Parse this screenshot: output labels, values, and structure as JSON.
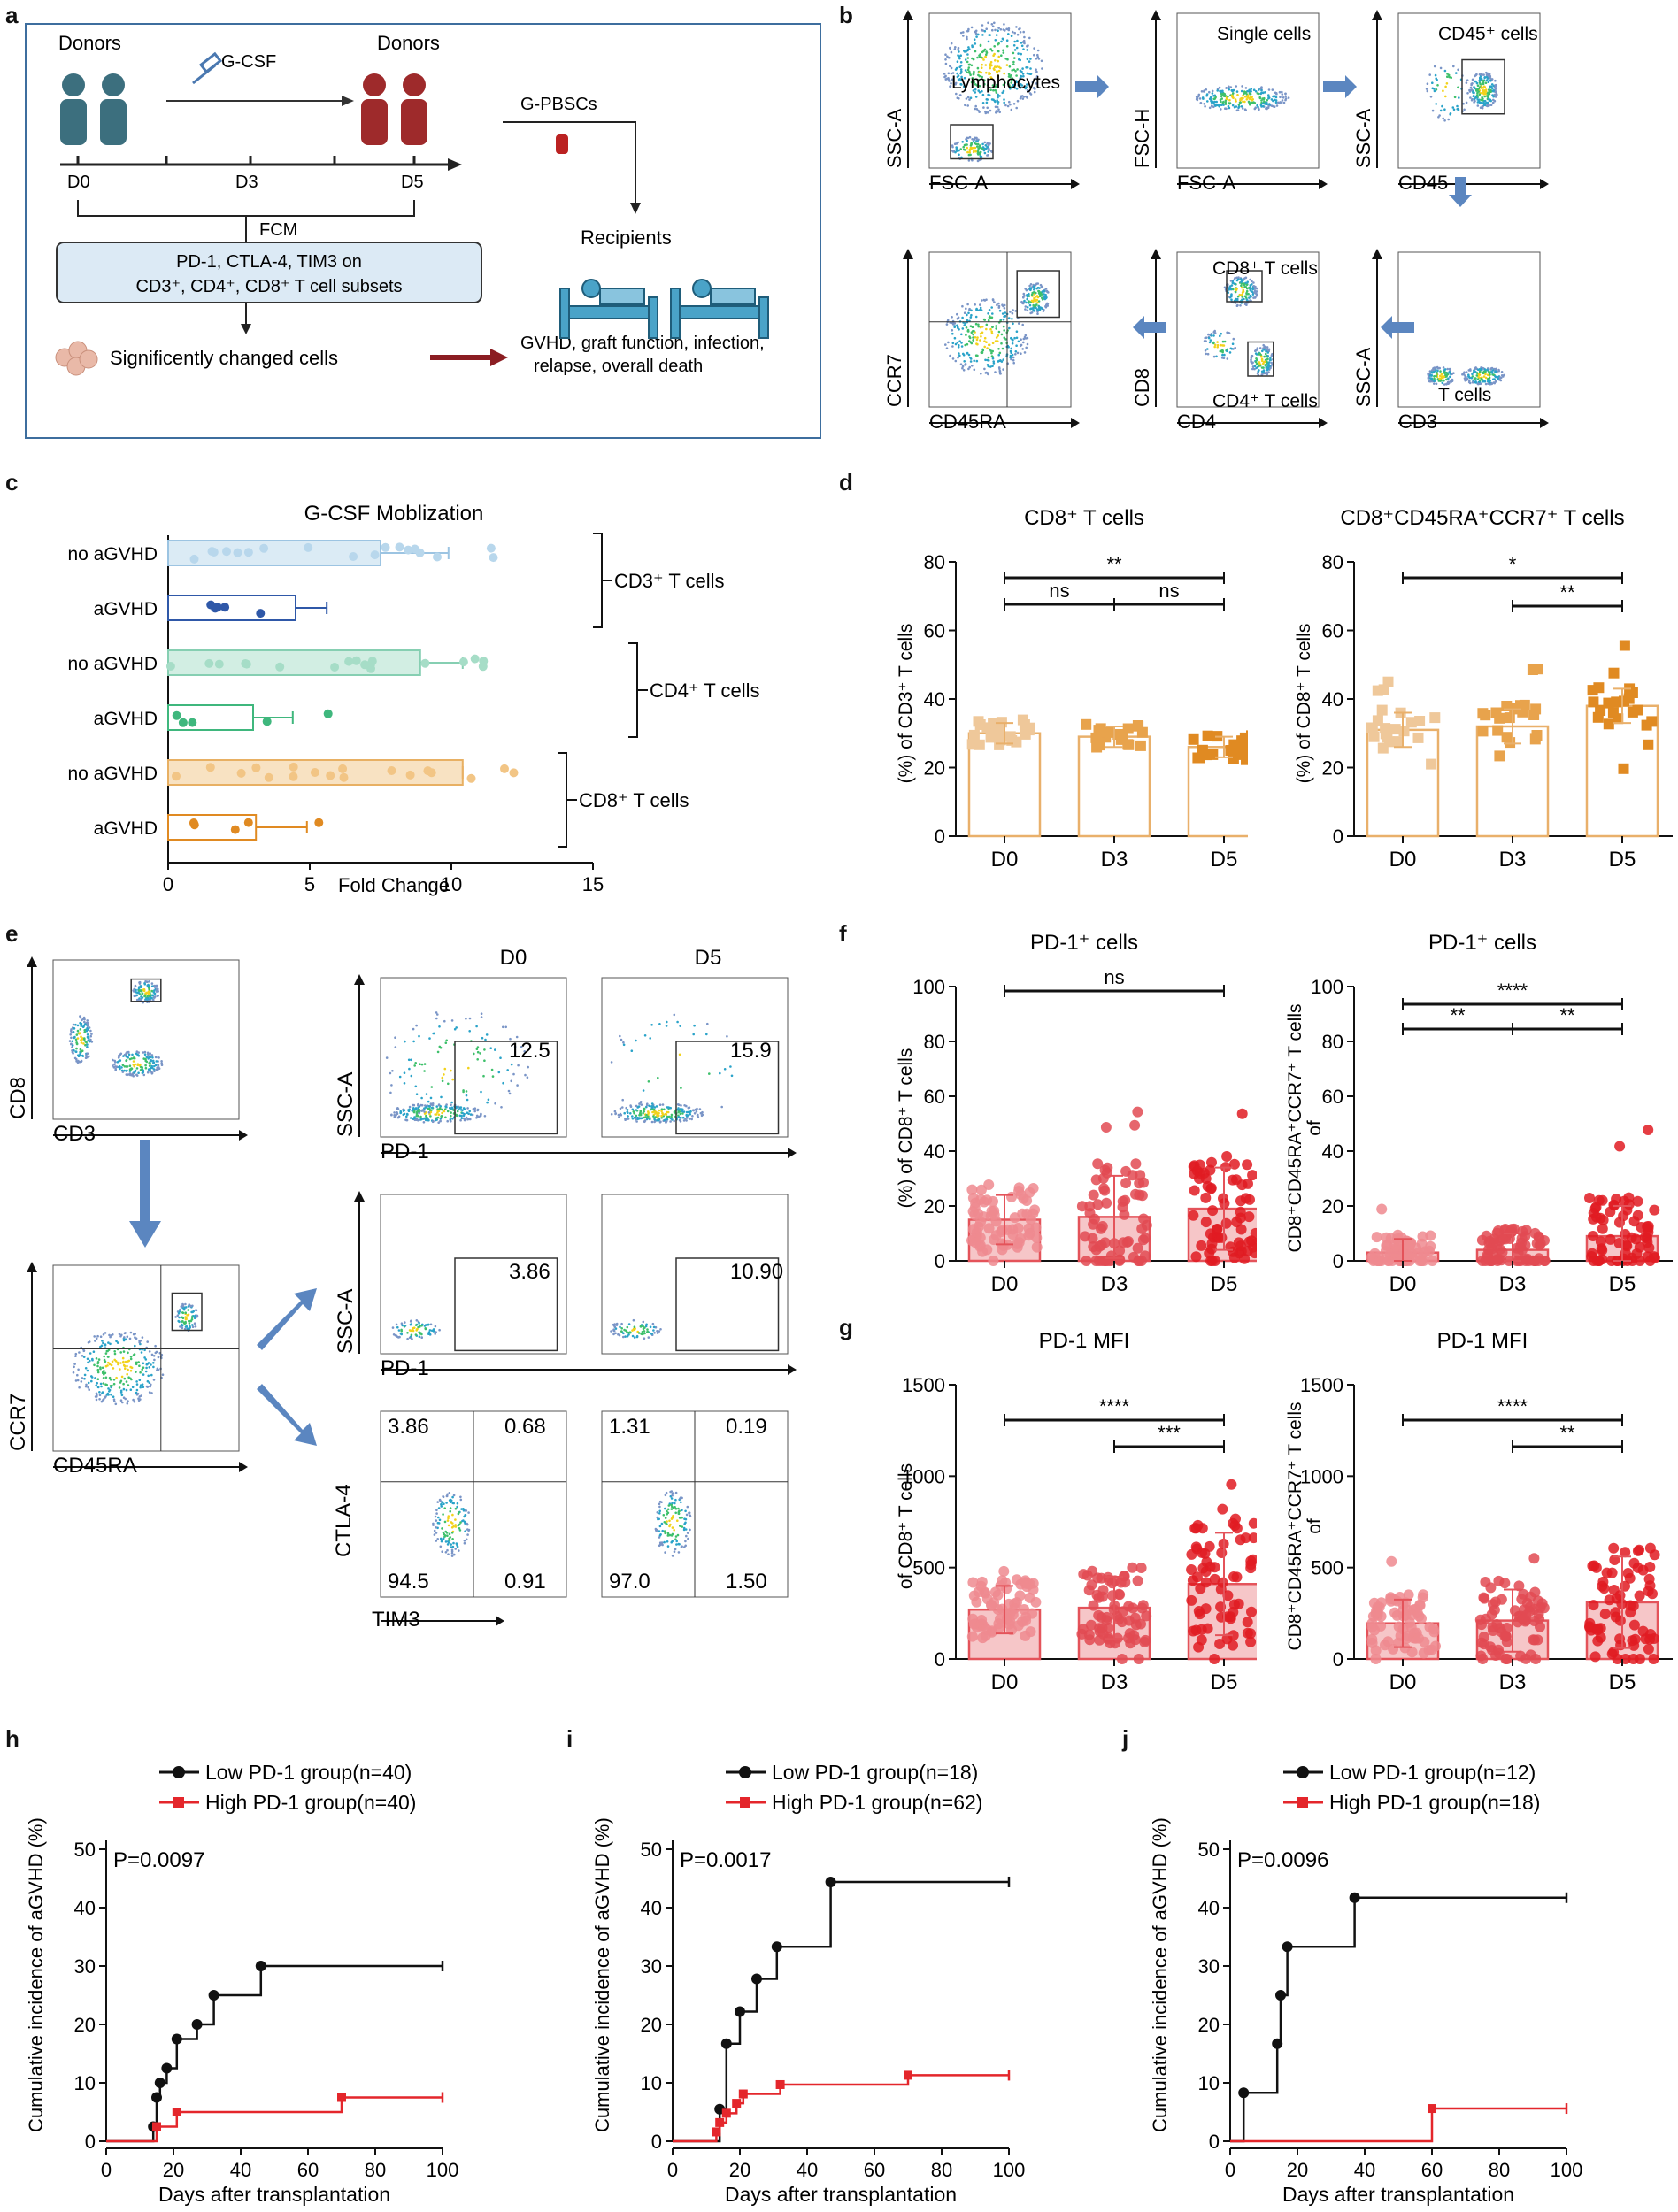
{
  "panels": {
    "a": {
      "letter": "a",
      "donors_left": "Donors",
      "donors_right": "Donors",
      "gcsf": "G-CSF",
      "gpbscs": "G-PBSCs",
      "d0": "D0",
      "d3": "D3",
      "d5": "D5",
      "fcm": "FCM",
      "markers_line1": "PD-1, CTLA-4, TIM3 on",
      "markers_line2": "CD3⁺, CD4⁺, CD8⁺ T cell subsets",
      "recipients": "Recipients",
      "changed": "Significently changed cells",
      "outcomes_line1": "GVHD, graft function, infection,",
      "outcomes_line2": "relapse, overall death"
    },
    "b": {
      "letter": "b",
      "plots": [
        {
          "gate": "Lymphocytes",
          "x": "FSC-A",
          "y": "SSC-A"
        },
        {
          "gate": "Single cells",
          "x": "FSC-A",
          "y": "FSC-H"
        },
        {
          "gate": "CD45⁺ cells",
          "x": "CD45",
          "y": "SSC-A"
        },
        {
          "gate": "T cells",
          "x": "CD3",
          "y": "SSC-A"
        },
        {
          "gate": "CD8⁺ T cells",
          "gate2": "CD4⁺ T cells",
          "x": "CD4",
          "y": "CD8"
        },
        {
          "gate": "",
          "x": "CD45RA",
          "y": "CCR7"
        }
      ]
    },
    "c": {
      "letter": "c",
      "title": "G-CSF Moblization",
      "xlabel": "Fold Change",
      "rows": [
        "no aGVHD",
        "aGVHD",
        "no aGVHD",
        "aGVHD",
        "no aGVHD",
        "aGVHD"
      ],
      "groups": [
        "CD3⁺ T cells",
        "CD4⁺ T cells",
        "CD8⁺ T cells"
      ],
      "xticks": [
        "0",
        "5",
        "10",
        "15"
      ]
    },
    "d": {
      "letter": "d",
      "plot1": {
        "title": "CD8⁺ T cells",
        "ylabel": "(%) of CD3⁺ T cells",
        "sig": [
          "**",
          "ns",
          "ns"
        ]
      },
      "plot2": {
        "title": "CD8⁺CD45RA⁺CCR7⁺ T cells",
        "ylabel": "(%) of CD8⁺ T cells",
        "sig": [
          "*",
          "**"
        ]
      },
      "yticks": [
        "0",
        "20",
        "40",
        "60",
        "80"
      ],
      "categories": [
        "D0",
        "D3",
        "D5"
      ]
    },
    "e": {
      "letter": "e",
      "d0": "D0",
      "d5": "D5",
      "axes": {
        "cd8": "CD8",
        "cd3": "CD3",
        "ccr7": "CCR7",
        "cd45ra": "CD45RA",
        "ssca": "SSC-A",
        "pd1": "PD-1",
        "ctla4": "CTLA-4",
        "tim3": "TIM3"
      },
      "row1": [
        "12.5",
        "15.9"
      ],
      "row2": [
        "3.86",
        "10.90"
      ],
      "quad_d0": [
        "3.86",
        "0.68",
        "94.5",
        "0.91"
      ],
      "quad_d5": [
        "1.31",
        "0.19",
        "97.0",
        "1.50"
      ]
    },
    "f": {
      "letter": "f",
      "plot1": {
        "title": "PD-1⁺ cells",
        "ylabel": "(%) of CD8⁺ T cells",
        "sig": [
          "ns"
        ]
      },
      "plot2": {
        "title": "PD-1⁺ cells",
        "ylabel": "CD8⁺CD45RA⁺CCR7⁺ T cells",
        "ylabel_of": "of",
        "sig": [
          "****",
          "**",
          "**"
        ]
      },
      "yticks": [
        "0",
        "20",
        "40",
        "60",
        "80",
        "100"
      ]
    },
    "g": {
      "letter": "g",
      "plot1": {
        "title": "PD-1 MFI",
        "ylabel": "of CD8⁺ T cells",
        "sig": [
          "****",
          "***"
        ]
      },
      "plot2": {
        "title": "PD-1 MFI",
        "ylabel": "CD8⁺CD45RA⁺CCR7⁺ T cells",
        "ylabel_of": "of",
        "sig": [
          "****",
          "**"
        ]
      },
      "yticks": [
        "0",
        "500",
        "1000",
        "1500"
      ]
    },
    "h": {
      "letter": "h",
      "pval": "P=0.0097",
      "low": "Low PD-1 group(n=40)",
      "high": "High PD-1 group(n=40)"
    },
    "i": {
      "letter": "i",
      "pval": "P=0.0017",
      "low": "Low PD-1 group(n=18)",
      "high": "High PD-1 group(n=62)"
    },
    "j": {
      "letter": "j",
      "pval": "P=0.0096",
      "low": "Low PD-1 group(n=12)",
      "high": "High PD-1 group(n=18)"
    }
  },
  "km_axes": {
    "ylabel": "Cumulative incidence of aGVHD (%)",
    "xlabel": "Days after transplantation",
    "xticks": [
      "0",
      "20",
      "40",
      "60",
      "80",
      "100"
    ],
    "yticks": [
      "0",
      "10",
      "20",
      "30",
      "40",
      "50"
    ]
  },
  "chart_data": [
    {
      "type": "bar",
      "id": "c",
      "title": "G-CSF Moblization",
      "xlabel": "Fold Change",
      "xlim": [
        0,
        15
      ],
      "orientation": "horizontal",
      "categories": [
        "CD3 no aGVHD",
        "CD3 aGVHD",
        "CD4 no aGVHD",
        "CD4 aGVHD",
        "CD8 no aGVHD",
        "CD8 aGVHD"
      ],
      "values": [
        7.5,
        4.5,
        8.9,
        3.0,
        10.4,
        3.1
      ],
      "errors": [
        9.9,
        5.6,
        10.4,
        4.4,
        10.4,
        4.9
      ]
    },
    {
      "type": "bar",
      "id": "d1",
      "title": "CD8⁺ T cells",
      "categories": [
        "D0",
        "D3",
        "D5"
      ],
      "values": [
        30,
        29,
        26
      ],
      "errors": [
        3,
        3,
        3
      ],
      "ylim": [
        0,
        80
      ]
    },
    {
      "type": "bar",
      "id": "d2",
      "title": "CD8⁺CD45RA⁺CCR7⁺ T cells",
      "categories": [
        "D0",
        "D3",
        "D5"
      ],
      "values": [
        31,
        32,
        38
      ],
      "errors": [
        5,
        5,
        5
      ],
      "ylim": [
        0,
        80
      ]
    },
    {
      "type": "bar",
      "id": "f1",
      "title": "PD-1⁺ cells",
      "categories": [
        "D0",
        "D3",
        "D5"
      ],
      "values": [
        15,
        16,
        19
      ],
      "errors": [
        9,
        15,
        15
      ],
      "ylim": [
        0,
        100
      ]
    },
    {
      "type": "bar",
      "id": "f2",
      "title": "PD-1⁺ cells",
      "categories": [
        "D0",
        "D3",
        "D5"
      ],
      "values": [
        3,
        4,
        9
      ],
      "errors": [
        5,
        6,
        11
      ],
      "ylim": [
        0,
        100
      ]
    },
    {
      "type": "bar",
      "id": "g1",
      "title": "PD-1 MFI",
      "categories": [
        "D0",
        "D3",
        "D5"
      ],
      "values": [
        270,
        280,
        410
      ],
      "errors": [
        130,
        170,
        280
      ],
      "ylim": [
        0,
        1500
      ]
    },
    {
      "type": "bar",
      "id": "g2",
      "title": "PD-1 MFI",
      "categories": [
        "D0",
        "D3",
        "D5"
      ],
      "values": [
        195,
        210,
        310
      ],
      "errors": [
        130,
        170,
        250
      ],
      "ylim": [
        0,
        1500
      ]
    },
    {
      "type": "line",
      "id": "h",
      "xlim": [
        0,
        100
      ],
      "ylim": [
        0,
        50
      ],
      "series": [
        {
          "name": "Low PD-1 group(n=40)",
          "x": [
            0,
            14,
            15,
            16,
            18,
            21,
            27,
            32,
            46,
            100
          ],
          "y": [
            0,
            2.5,
            7.5,
            10,
            12.5,
            17.5,
            20,
            25,
            30,
            30
          ]
        },
        {
          "name": "High PD-1 group(n=40)",
          "x": [
            0,
            15,
            21,
            70,
            100
          ],
          "y": [
            0,
            2.5,
            5,
            7.5,
            7.5
          ]
        }
      ]
    },
    {
      "type": "line",
      "id": "i",
      "xlim": [
        0,
        100
      ],
      "ylim": [
        0,
        50
      ],
      "series": [
        {
          "name": "Low PD-1 group(n=18)",
          "x": [
            0,
            14,
            16,
            20,
            25,
            31,
            47,
            100
          ],
          "y": [
            0,
            5.5,
            16.7,
            22.2,
            27.8,
            33.3,
            44.4,
            44.4
          ]
        },
        {
          "name": "High PD-1 group(n=62)",
          "x": [
            0,
            13,
            14,
            16,
            19,
            21,
            32,
            70,
            100
          ],
          "y": [
            0,
            1.6,
            3.2,
            4.8,
            6.5,
            8.1,
            9.7,
            11.3,
            11.3
          ]
        }
      ]
    },
    {
      "type": "line",
      "id": "j",
      "xlim": [
        0,
        100
      ],
      "ylim": [
        0,
        50
      ],
      "series": [
        {
          "name": "Low PD-1 group(n=12)",
          "x": [
            0,
            4,
            14,
            15,
            17,
            37,
            100
          ],
          "y": [
            0,
            8.3,
            16.7,
            25,
            33.3,
            41.7,
            41.7
          ]
        },
        {
          "name": "High PD-1 group(n=18)",
          "x": [
            0,
            60,
            100
          ],
          "y": [
            0,
            5.6,
            5.6
          ]
        }
      ]
    }
  ]
}
